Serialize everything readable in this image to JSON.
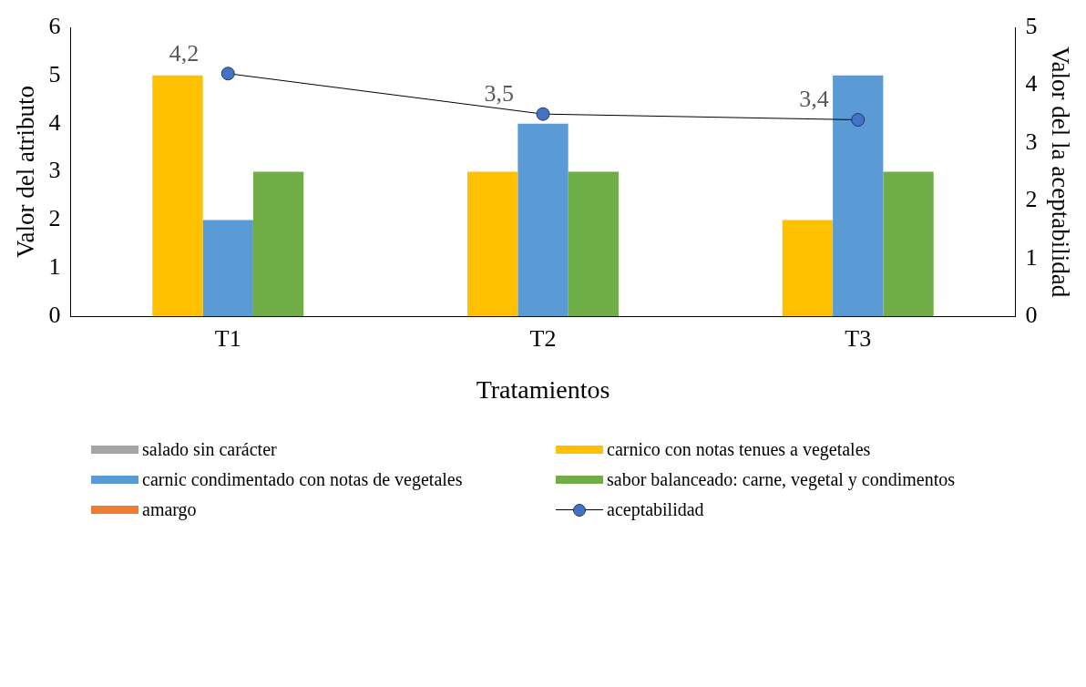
{
  "chart_data": {
    "type": "bar",
    "xlabel": "Tratamientos",
    "ylabel": "Valor del atributo",
    "y2label": "Valor del la aceptabilidad",
    "categories": [
      "T1",
      "T2",
      "T3"
    ],
    "ylim": [
      0,
      6
    ],
    "yticks": [
      0,
      1,
      2,
      3,
      4,
      5,
      6
    ],
    "y2lim": [
      0,
      5
    ],
    "y2ticks": [
      0,
      1,
      2,
      3,
      4,
      5
    ],
    "legend": "bottom",
    "series": [
      {
        "name": "salado sin carácter",
        "color": "#a5a5a5",
        "values": [
          0,
          0,
          0
        ]
      },
      {
        "name": "carnico con notas tenues a vegetales",
        "color": "#ffc000",
        "values": [
          5,
          3,
          2
        ]
      },
      {
        "name": "carnic condimentado con notas de vegetales",
        "color": "#5b9bd5",
        "values": [
          2,
          4,
          5
        ]
      },
      {
        "name": "sabor balanceado: carne, vegetal y condimentos",
        "color": "#70ad47",
        "values": [
          3,
          3,
          3
        ]
      },
      {
        "name": "amargo",
        "color": "#ed7d31",
        "values": [
          0,
          0,
          0
        ]
      },
      {
        "name": "aceptabilidad",
        "type": "line",
        "axis": "y2",
        "color": "#4472c4",
        "marker": "circle",
        "values": [
          4.2,
          3.5,
          3.4
        ],
        "value_labels": [
          "4,2",
          "3,5",
          "3,4"
        ]
      }
    ]
  }
}
